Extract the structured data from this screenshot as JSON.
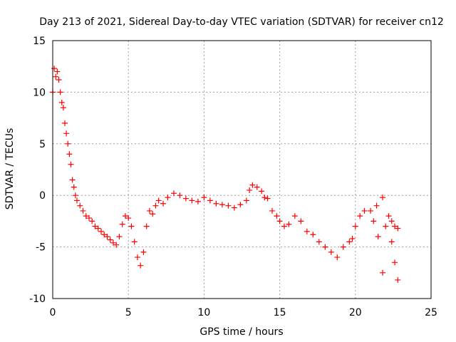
{
  "chart_data": {
    "type": "scatter",
    "title": "Day 213 of 2021, Sidereal Day-to-day VTEC variation (SDTVAR) for receiver cn12",
    "xlabel": "GPS time / hours",
    "ylabel": "SDTVAR / TECUs",
    "xlim": [
      0,
      25
    ],
    "ylim": [
      -10,
      15
    ],
    "xticks": [
      0,
      5,
      10,
      15,
      20,
      25
    ],
    "yticks": [
      -10,
      -5,
      0,
      5,
      10,
      15
    ],
    "xtick_labels": [
      "0",
      "5",
      "10",
      "15",
      "20",
      "25"
    ],
    "ytick_labels": [
      "-10",
      "-5",
      "0",
      "5",
      "10",
      "15"
    ],
    "grid": true,
    "marker": "+",
    "series": [
      {
        "name": "SDTVAR",
        "color": "#ff0000",
        "points": [
          [
            0.0,
            10.0
          ],
          [
            0.1,
            12.3
          ],
          [
            0.2,
            11.5
          ],
          [
            0.3,
            12.0
          ],
          [
            0.4,
            11.2
          ],
          [
            0.5,
            10.0
          ],
          [
            0.6,
            9.0
          ],
          [
            0.7,
            8.5
          ],
          [
            0.8,
            7.0
          ],
          [
            0.9,
            6.0
          ],
          [
            1.0,
            5.0
          ],
          [
            1.1,
            4.0
          ],
          [
            1.2,
            3.0
          ],
          [
            1.3,
            1.5
          ],
          [
            1.4,
            0.8
          ],
          [
            1.5,
            0.0
          ],
          [
            1.6,
            -0.5
          ],
          [
            1.8,
            -1.0
          ],
          [
            2.0,
            -1.5
          ],
          [
            2.2,
            -2.0
          ],
          [
            2.4,
            -2.2
          ],
          [
            2.6,
            -2.5
          ],
          [
            2.8,
            -3.0
          ],
          [
            3.0,
            -3.2
          ],
          [
            3.2,
            -3.5
          ],
          [
            3.4,
            -3.8
          ],
          [
            3.6,
            -4.0
          ],
          [
            3.8,
            -4.3
          ],
          [
            4.0,
            -4.6
          ],
          [
            4.2,
            -4.8
          ],
          [
            4.4,
            -4.0
          ],
          [
            4.6,
            -2.8
          ],
          [
            4.8,
            -2.0
          ],
          [
            5.0,
            -2.2
          ],
          [
            5.2,
            -3.0
          ],
          [
            5.4,
            -4.5
          ],
          [
            5.6,
            -6.0
          ],
          [
            5.8,
            -6.8
          ],
          [
            6.0,
            -5.5
          ],
          [
            6.2,
            -3.0
          ],
          [
            6.4,
            -1.5
          ],
          [
            6.6,
            -1.8
          ],
          [
            6.8,
            -1.0
          ],
          [
            7.0,
            -0.5
          ],
          [
            7.3,
            -0.8
          ],
          [
            7.6,
            -0.2
          ],
          [
            8.0,
            0.2
          ],
          [
            8.4,
            0.0
          ],
          [
            8.8,
            -0.3
          ],
          [
            9.2,
            -0.5
          ],
          [
            9.6,
            -0.6
          ],
          [
            10.0,
            -0.2
          ],
          [
            10.4,
            -0.5
          ],
          [
            10.8,
            -0.8
          ],
          [
            11.2,
            -0.9
          ],
          [
            11.6,
            -1.0
          ],
          [
            12.0,
            -1.2
          ],
          [
            12.4,
            -0.9
          ],
          [
            12.8,
            -0.5
          ],
          [
            13.0,
            0.5
          ],
          [
            13.2,
            1.0
          ],
          [
            13.5,
            0.8
          ],
          [
            13.8,
            0.4
          ],
          [
            14.0,
            -0.2
          ],
          [
            14.2,
            -0.3
          ],
          [
            14.5,
            -1.5
          ],
          [
            14.8,
            -2.0
          ],
          [
            15.0,
            -2.5
          ],
          [
            15.3,
            -3.0
          ],
          [
            15.6,
            -2.8
          ],
          [
            16.0,
            -2.0
          ],
          [
            16.4,
            -2.5
          ],
          [
            16.8,
            -3.5
          ],
          [
            17.2,
            -3.8
          ],
          [
            17.6,
            -4.5
          ],
          [
            18.0,
            -5.0
          ],
          [
            18.4,
            -5.5
          ],
          [
            18.8,
            -6.0
          ],
          [
            19.2,
            -5.0
          ],
          [
            19.6,
            -4.5
          ],
          [
            19.8,
            -4.2
          ],
          [
            20.0,
            -3.0
          ],
          [
            20.3,
            -2.0
          ],
          [
            20.6,
            -1.5
          ],
          [
            21.0,
            -1.5
          ],
          [
            21.4,
            -1.0
          ],
          [
            21.8,
            -0.2
          ],
          [
            21.2,
            -2.5
          ],
          [
            21.5,
            -4.0
          ],
          [
            21.8,
            -7.5
          ],
          [
            22.0,
            -3.0
          ],
          [
            22.2,
            -2.0
          ],
          [
            22.4,
            -2.5
          ],
          [
            22.6,
            -3.0
          ],
          [
            22.8,
            -3.2
          ],
          [
            22.4,
            -4.5
          ],
          [
            22.6,
            -6.5
          ],
          [
            22.8,
            -8.2
          ]
        ]
      }
    ]
  }
}
